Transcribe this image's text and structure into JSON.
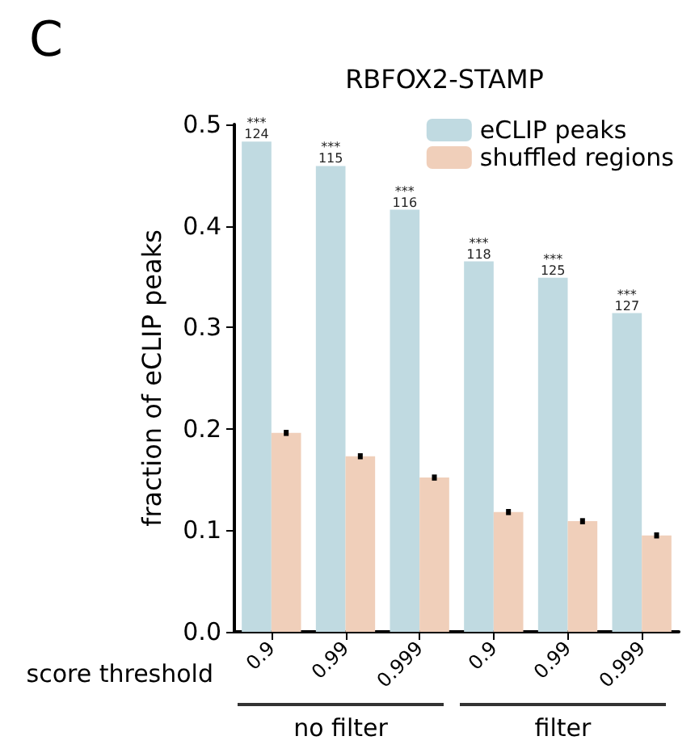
{
  "chart_data": {
    "type": "bar",
    "title": "RBFOX2-STAMP",
    "xlabel": "score threshold",
    "ylabel": "fraction of eCLIP peaks",
    "categories": [
      "0.9",
      "0.99",
      "0.999",
      "0.9",
      "0.99",
      "0.999"
    ],
    "series": [
      {
        "name": "eCLIP peaks",
        "color": "#c0dae1",
        "values": [
          0.483,
          0.459,
          0.416,
          0.365,
          0.349,
          0.314
        ]
      },
      {
        "name": "shuffled regions",
        "color": "#f0cfba",
        "values": [
          0.196,
          0.173,
          0.152,
          0.118,
          0.109,
          0.095
        ],
        "errors": [
          0.003,
          0.003,
          0.003,
          0.003,
          0.003,
          0.003
        ]
      }
    ],
    "annotations": [
      "C",
      "no filter",
      "filter",
      "***\n124",
      "***\n115",
      "***\n116",
      "***\n118",
      "***\n125",
      "***\n127"
    ],
    "ylim": [
      0,
      0.5
    ],
    "yticks": [
      {
        "value": 0,
        "label": "0.0"
      },
      {
        "value": 0.1,
        "label": "0.1"
      },
      {
        "value": 0.2,
        "label": "0.2"
      },
      {
        "value": 0.3,
        "label": "0.3"
      },
      {
        "value": 0.4,
        "label": "0.4"
      },
      {
        "value": 0.5,
        "label": "0.5"
      }
    ],
    "grid": false,
    "legend": "top right"
  }
}
